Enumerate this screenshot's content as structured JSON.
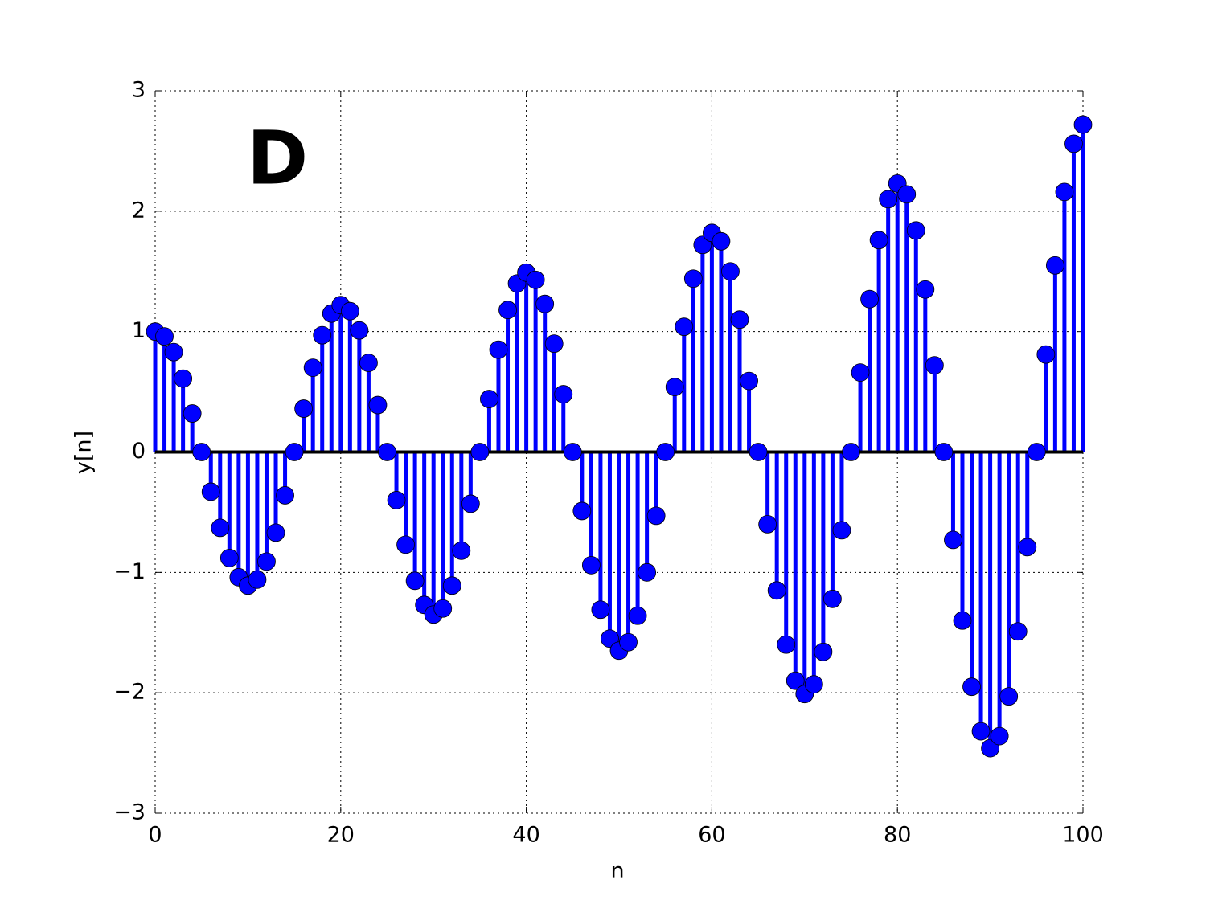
{
  "chart_data": {
    "type": "stem",
    "annotation": "D",
    "xlabel": "n",
    "ylabel": "y[n]",
    "xlim": [
      0,
      100
    ],
    "ylim": [
      -3,
      3
    ],
    "xticks": [
      0,
      20,
      40,
      60,
      80,
      100
    ],
    "yticks": [
      {
        "value": -3,
        "label": "−3"
      },
      {
        "value": -2,
        "label": "−2"
      },
      {
        "value": -1,
        "label": "−1"
      },
      0,
      1,
      2,
      3
    ],
    "grid": true,
    "color": "#0000ff",
    "x": [
      0,
      1,
      2,
      3,
      4,
      5,
      6,
      7,
      8,
      9,
      10,
      11,
      12,
      13,
      14,
      15,
      16,
      17,
      18,
      19,
      20,
      21,
      22,
      23,
      24,
      25,
      26,
      27,
      28,
      29,
      30,
      31,
      32,
      33,
      34,
      35,
      36,
      37,
      38,
      39,
      40,
      41,
      42,
      43,
      44,
      45,
      46,
      47,
      48,
      49,
      50,
      51,
      52,
      53,
      54,
      55,
      56,
      57,
      58,
      59,
      60,
      61,
      62,
      63,
      64,
      65,
      66,
      67,
      68,
      69,
      70,
      71,
      72,
      73,
      74,
      75,
      76,
      77,
      78,
      79,
      80,
      81,
      82,
      83,
      84,
      85,
      86,
      87,
      88,
      89,
      90,
      91,
      92,
      93,
      94,
      95,
      96,
      97,
      98,
      99,
      100
    ],
    "values": [
      1.0,
      0.96,
      0.83,
      0.61,
      0.32,
      0,
      -0.33,
      -0.63,
      -0.88,
      -1.04,
      -1.11,
      -1.06,
      -0.91,
      -0.67,
      -0.36,
      0,
      0.36,
      0.7,
      0.97,
      1.15,
      1.22,
      1.17,
      1.01,
      0.74,
      0.39,
      0,
      -0.4,
      -0.77,
      -1.07,
      -1.27,
      -1.35,
      -1.3,
      -1.11,
      -0.82,
      -0.43,
      0,
      0.44,
      0.85,
      1.18,
      1.4,
      1.49,
      1.43,
      1.23,
      0.9,
      0.48,
      0,
      -0.49,
      -0.94,
      -1.31,
      -1.55,
      -1.65,
      -1.58,
      -1.36,
      -1.0,
      -0.53,
      0,
      0.54,
      1.04,
      1.44,
      1.72,
      1.82,
      1.75,
      1.5,
      1.1,
      0.59,
      0,
      -0.6,
      -1.15,
      -1.6,
      -1.9,
      -2.01,
      -1.93,
      -1.66,
      -1.22,
      -0.65,
      0,
      0.66,
      1.27,
      1.76,
      2.1,
      2.23,
      2.14,
      1.84,
      1.35,
      0.72,
      0,
      -0.73,
      -1.4,
      -1.95,
      -2.32,
      -2.46,
      -2.36,
      -2.03,
      -1.49,
      -0.79,
      0,
      0.81,
      1.55,
      2.16,
      2.56,
      2.72
    ]
  }
}
